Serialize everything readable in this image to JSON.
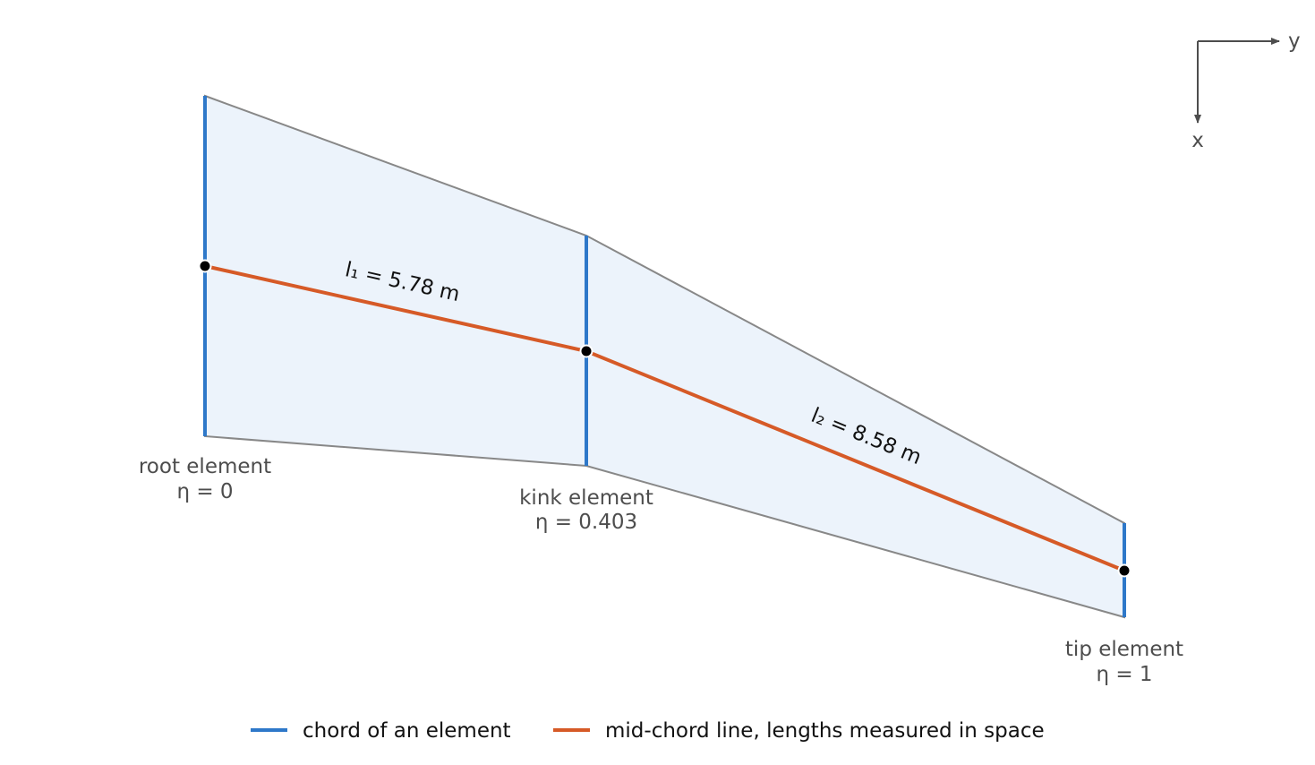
{
  "colors": {
    "planform_fill": "#ecf3fb",
    "planform_edge": "#888888",
    "chord": "#2e78c9",
    "mid_chord": "#d65a27",
    "node": "#000000",
    "axis": "#4d4d4d"
  },
  "axes": {
    "y_label": "y",
    "x_label": "x"
  },
  "elements": [
    {
      "name": "root element",
      "eta": "η = 0"
    },
    {
      "name": "kink element",
      "eta": "η = 0.403"
    },
    {
      "name": "tip element",
      "eta": "η = 1"
    }
  ],
  "segments": [
    {
      "label": "l₁ = 5.78 m"
    },
    {
      "label": "l₂ = 8.58 m"
    }
  ],
  "legend": {
    "chord": "chord of an element",
    "mid_chord": "mid-chord line, lengths measured in space"
  }
}
